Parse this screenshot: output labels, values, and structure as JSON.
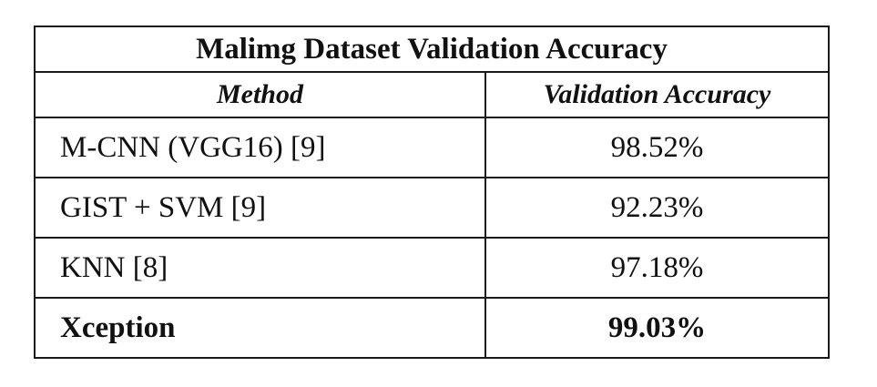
{
  "table": {
    "title": "Malimg Dataset Validation Accuracy",
    "headers": [
      "Method",
      "Validation Accuracy"
    ],
    "rows": [
      {
        "method": "M-CNN (VGG16) [9]",
        "accuracy": "98.52%",
        "bold": false
      },
      {
        "method": "GIST + SVM [9]",
        "accuracy": "92.23%",
        "bold": false
      },
      {
        "method": "KNN [8]",
        "accuracy": "97.18%",
        "bold": false
      },
      {
        "method": "Xception",
        "accuracy": "99.03%",
        "bold": true
      }
    ]
  }
}
